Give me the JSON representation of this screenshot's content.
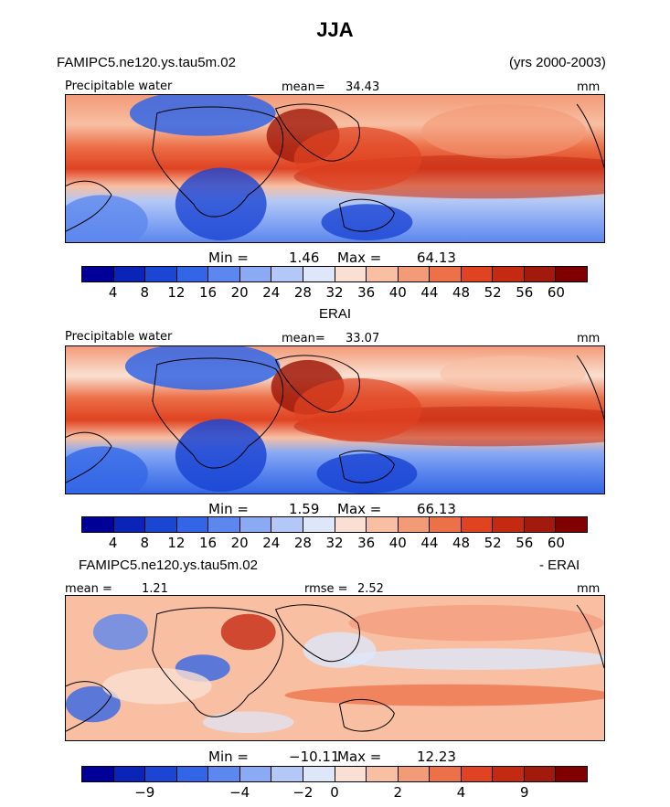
{
  "title": "JJA",
  "top_case": "FAMIPC5.ne120.ys.tau5m.02",
  "years": "(yrs 2000-2003)",
  "panels": {
    "p1": {
      "variable": "Precipitable water",
      "mean_label": "mean=",
      "mean_value": "34.43",
      "units": "mm",
      "min_label": "Min =",
      "min_value": "1.46",
      "max_label": "Max =",
      "max_value": "64.13"
    },
    "p2": {
      "title": "ERAI",
      "variable": "Precipitable water",
      "mean_label": "mean=",
      "mean_value": "33.07",
      "units": "mm",
      "min_label": "Min =",
      "min_value": "1.59",
      "max_label": "Max =",
      "max_value": "66.13"
    },
    "p3": {
      "title_left": "FAMIPC5.ne120.ys.tau5m.02",
      "title_right": "- ERAI",
      "mean_label": "mean =",
      "mean_value": "1.21",
      "rmse_label": "rmse =",
      "rmse_value": "2.52",
      "units": "mm",
      "min_label": "Min =",
      "min_value": "−10.11",
      "max_label": "Max =",
      "max_value": "12.23"
    }
  },
  "colorbars": {
    "abs": {
      "ticks": [
        "4",
        "8",
        "12",
        "16",
        "20",
        "24",
        "28",
        "32",
        "36",
        "40",
        "44",
        "48",
        "52",
        "56",
        "60"
      ],
      "colors": [
        "#000099",
        "#0a24b8",
        "#1b45d3",
        "#3366e6",
        "#5c87ee",
        "#8aaaf3",
        "#b3c8f6",
        "#dde7f9",
        "#fae0d2",
        "#f8bfa3",
        "#f39a77",
        "#ec7048",
        "#df4322",
        "#c42a12",
        "#a11a0b",
        "#800000"
      ]
    },
    "diff": {
      "ticks": [
        "−9",
        "−4",
        "−2",
        "0",
        "2",
        "4",
        "9"
      ],
      "colors": [
        "#000099",
        "#0a24b8",
        "#1b45d3",
        "#3366e6",
        "#5c87ee",
        "#8aaaf3",
        "#b3c8f6",
        "#dde7f9",
        "#fae0d2",
        "#f8bfa3",
        "#f39a77",
        "#ec7048",
        "#df4322",
        "#c42a12",
        "#a11a0b",
        "#800000"
      ]
    }
  },
  "chart_data": [
    {
      "type": "heatmap",
      "title": "Precipitable water (FAMIPC5.ne120.ys.tau5m.02, JJA, yrs 2000-2003)",
      "units": "mm",
      "mean": 34.43,
      "min": 1.46,
      "max": 64.13,
      "contour_levels": [
        4,
        8,
        12,
        16,
        20,
        24,
        28,
        32,
        36,
        40,
        44,
        48,
        52,
        56,
        60
      ]
    },
    {
      "type": "heatmap",
      "title": "Precipitable water (ERAI)",
      "units": "mm",
      "mean": 33.07,
      "min": 1.59,
      "max": 66.13,
      "contour_levels": [
        4,
        8,
        12,
        16,
        20,
        24,
        28,
        32,
        36,
        40,
        44,
        48,
        52,
        56,
        60
      ]
    },
    {
      "type": "heatmap",
      "title": "FAMIPC5.ne120.ys.tau5m.02 - ERAI",
      "units": "mm",
      "mean": 1.21,
      "rmse": 2.52,
      "min": -10.11,
      "max": 12.23,
      "labeled_levels": [
        -9,
        -4,
        -2,
        0,
        2,
        4,
        9
      ]
    }
  ]
}
